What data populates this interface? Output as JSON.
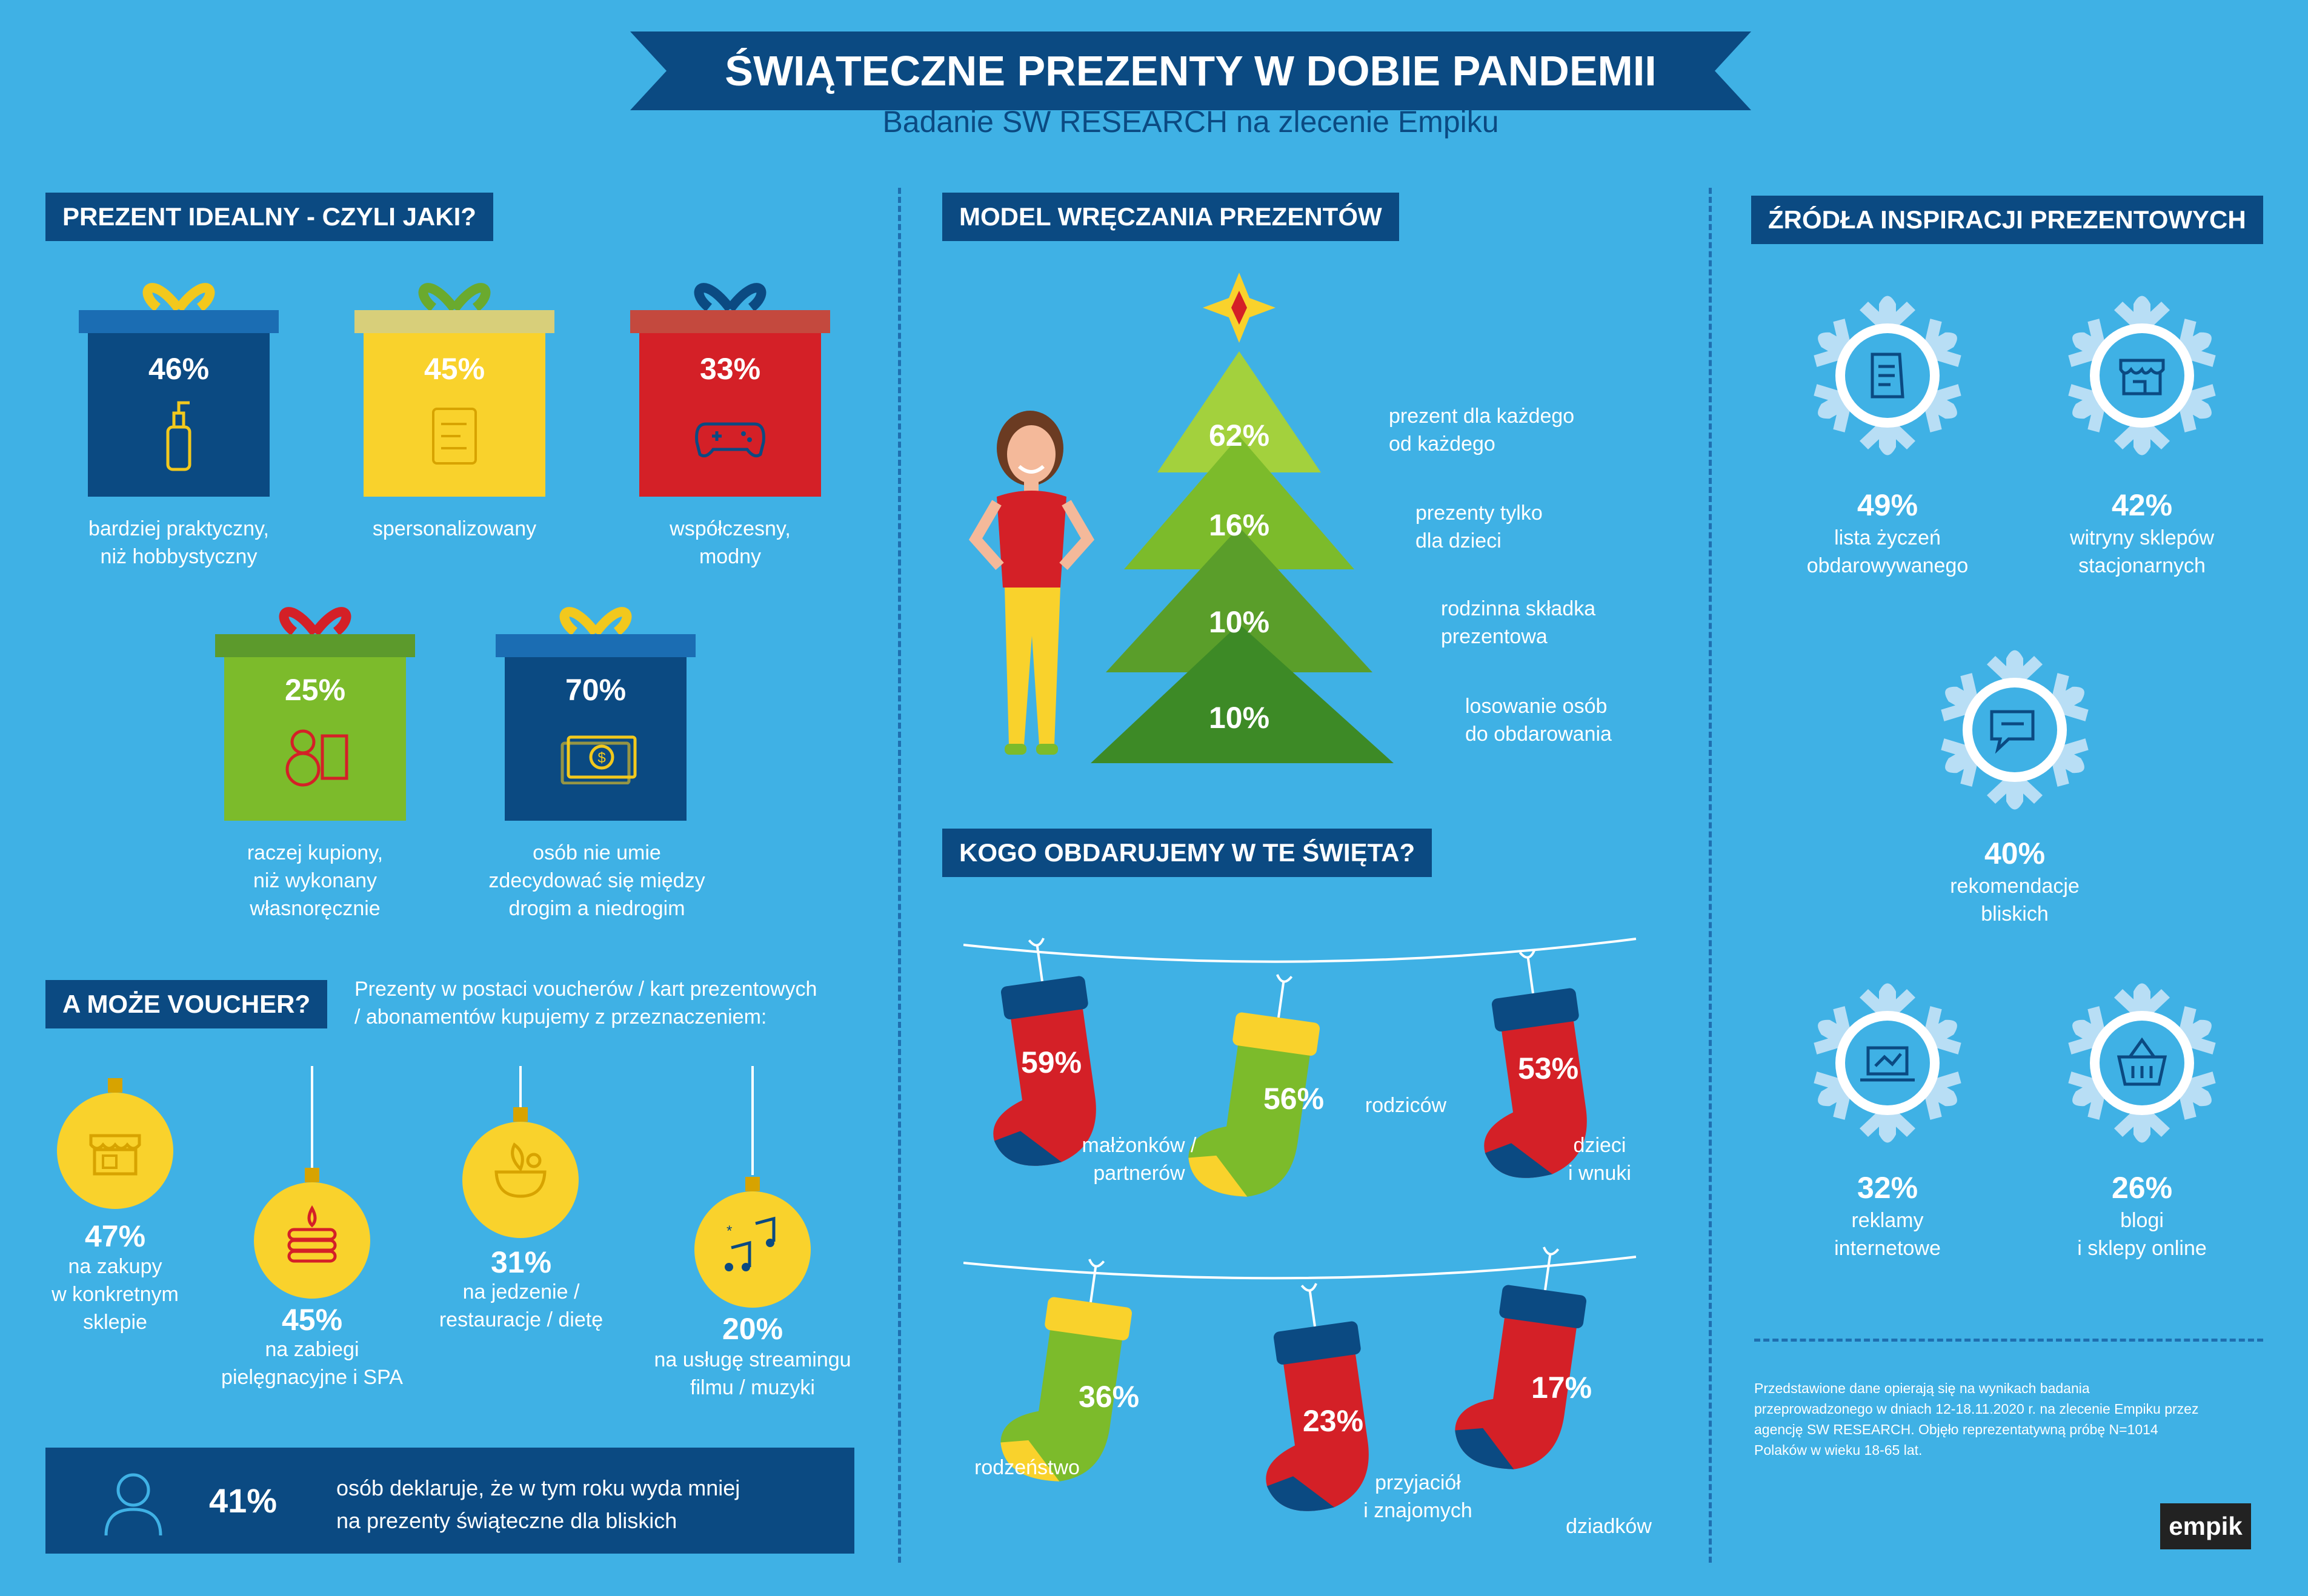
{
  "header": {
    "title": "ŚWIĄTECZNE PREZENTY W DOBIE PANDEMII",
    "subtitle": "Badanie SW RESEARCH na zlecenie Empiku"
  },
  "ideal": {
    "heading": "PREZENT IDEALNY - CZYLI JAKI?",
    "gifts": [
      {
        "value": "46%",
        "line1": "bardziej praktyczny,",
        "line2": "niż hobbystyczny",
        "line3": "",
        "icon": "bottle-icon",
        "box": "#0b4a82",
        "bow": "#f2c81d"
      },
      {
        "value": "45%",
        "line1": "spersonalizowany",
        "line2": "",
        "line3": "",
        "icon": "scroll-icon",
        "box": "#f9d22c",
        "bow": "#6aaa2e"
      },
      {
        "value": "33%",
        "line1": "współczesny,",
        "line2": "modny",
        "line3": "",
        "icon": "gamepad-icon",
        "box": "#d42027",
        "bow": "#0b4a82"
      },
      {
        "value": "25%",
        "line1": "raczej kupiony,",
        "line2": "niż wykonany",
        "line3": "własnoręcznie",
        "icon": "teddy-icon",
        "box": "#7cbb2b",
        "bow": "#d42027"
      },
      {
        "value": "70%",
        "line1": "osób nie umie",
        "line2": "zdecydować się między",
        "line3": "drogim a niedrogim",
        "icon": "money-icon",
        "box": "#0b4a82",
        "bow": "#f2c81d"
      }
    ]
  },
  "voucher": {
    "heading": "A MOŻE VOUCHER?",
    "intro1": "Prezenty w postaci voucherów / kart prezentowych",
    "intro2": "/ abonamentów kupujemy z przeznaczeniem:",
    "items": [
      {
        "value": "47%",
        "line1": "na zakupy",
        "line2": "w konkretnym",
        "line3": "sklepie",
        "icon": "shop-icon"
      },
      {
        "value": "45%",
        "line1": "na zabiegi",
        "line2": "pielęgnacyjne i SPA",
        "line3": "",
        "icon": "spa-icon"
      },
      {
        "value": "31%",
        "line1": "na jedzenie /",
        "line2": "restauracje / dietę",
        "line3": "",
        "icon": "food-icon"
      },
      {
        "value": "20%",
        "line1": "na usługę streamingu",
        "line2": "filmu / muzyki",
        "line3": "",
        "icon": "music-icon"
      }
    ],
    "bottom": {
      "value": "41%",
      "line1": "osób deklaruje, że w tym roku wyda mniej",
      "line2": "na prezenty świąteczne dla bliskich",
      "icon": "person-icon"
    }
  },
  "model": {
    "heading": "MODEL WRĘCZANIA PREZENTÓW",
    "tiers": [
      {
        "value": "62%",
        "line1": "prezent dla każdego",
        "line2": "od każdego"
      },
      {
        "value": "16%",
        "line1": "prezenty tylko",
        "line2": "dla dzieci"
      },
      {
        "value": "10%",
        "line1": "rodzinna składka",
        "line2": "prezentowa"
      },
      {
        "value": "10%",
        "line1": "losowanie osób",
        "line2": "do obdarowania"
      }
    ]
  },
  "whom": {
    "heading": "KOGO OBDARUJEMY W TE ŚWIĘTA?",
    "socks": [
      {
        "value": "59%",
        "line1": "małżonków /",
        "line2": "partnerów",
        "color": "#d42027",
        "cuff": "#0b4a82"
      },
      {
        "value": "56%",
        "line1": "rodziców",
        "line2": "",
        "color": "#7cbb2b",
        "cuff": "#f9d22c"
      },
      {
        "value": "53%",
        "line1": "dzieci",
        "line2": "i wnuki",
        "color": "#d42027",
        "cuff": "#0b4a82"
      },
      {
        "value": "36%",
        "line1": "rodzeństwo",
        "line2": "",
        "color": "#7cbb2b",
        "cuff": "#f9d22c"
      },
      {
        "value": "23%",
        "line1": "przyjaciół",
        "line2": "i znajomych",
        "color": "#d42027",
        "cuff": "#0b4a82"
      },
      {
        "value": "17%",
        "line1": "dziadków",
        "line2": "",
        "color": "#d42027",
        "cuff": "#0b4a82"
      }
    ]
  },
  "sources": {
    "heading": "ŹRÓDŁA INSPIRACJI PREZENTOWYCH",
    "items": [
      {
        "value": "49%",
        "line1": "lista życzeń",
        "line2": "obdarowywanego",
        "icon": "list-icon"
      },
      {
        "value": "42%",
        "line1": "witryny sklepów",
        "line2": "stacjonarnych",
        "icon": "storefront-icon"
      },
      {
        "value": "40%",
        "line1": "rekomendacje",
        "line2": "bliskich",
        "icon": "chat-icon"
      },
      {
        "value": "32%",
        "line1": "reklamy",
        "line2": "internetowe",
        "icon": "laptop-icon"
      },
      {
        "value": "26%",
        "line1": "blogi",
        "line2": "i sklepy online",
        "icon": "basket-icon"
      }
    ],
    "note1": "Przedstawione dane opierają się na wynikach badania",
    "note2": "przeprowadzonego w dniach 12-18.11.2020 r. na zlecenie Empiku przez",
    "note3": "agencję SW RESEARCH. Objęło reprezentatywną próbę N=1014",
    "note4": "Polaków w wieku 18-65 lat.",
    "logo": "empik"
  }
}
